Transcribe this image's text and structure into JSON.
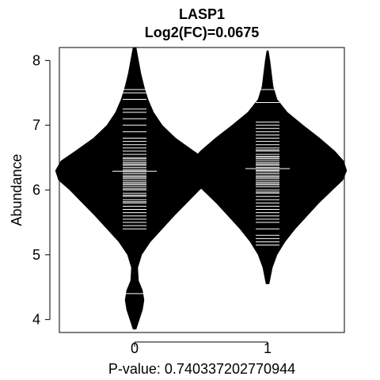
{
  "chart_data": {
    "type": "beanplot",
    "title": "LASP1",
    "subtitle": "Log2(FC)=0.0675",
    "ylabel": "Abundance",
    "xlabel": "P-value: 0.740337202770944",
    "categories": [
      "0",
      "1"
    ],
    "yticks": [
      4,
      5,
      6,
      7,
      8
    ],
    "ylim": [
      3.8,
      8.2
    ],
    "overall_mean": 6.31,
    "groups": [
      {
        "name": "0",
        "mean": 6.29,
        "min": 3.85,
        "max": 8.2,
        "density": [
          [
            3.85,
            0.02
          ],
          [
            4.0,
            0.06
          ],
          [
            4.15,
            0.1
          ],
          [
            4.3,
            0.12
          ],
          [
            4.45,
            0.1
          ],
          [
            4.6,
            0.05
          ],
          [
            4.8,
            0.04
          ],
          [
            5.0,
            0.09
          ],
          [
            5.2,
            0.2
          ],
          [
            5.4,
            0.35
          ],
          [
            5.6,
            0.5
          ],
          [
            5.8,
            0.66
          ],
          [
            6.0,
            0.82
          ],
          [
            6.15,
            0.96
          ],
          [
            6.3,
            1.0
          ],
          [
            6.45,
            0.93
          ],
          [
            6.6,
            0.75
          ],
          [
            6.8,
            0.52
          ],
          [
            7.0,
            0.35
          ],
          [
            7.2,
            0.24
          ],
          [
            7.4,
            0.17
          ],
          [
            7.6,
            0.12
          ],
          [
            7.8,
            0.08
          ],
          [
            8.0,
            0.05
          ],
          [
            8.2,
            0.02
          ]
        ],
        "lines": [
          4.4,
          5.4,
          5.45,
          5.5,
          5.55,
          5.6,
          5.65,
          5.7,
          5.75,
          5.8,
          5.82,
          5.85,
          5.9,
          5.92,
          5.95,
          6.0,
          6.02,
          6.05,
          6.08,
          6.1,
          6.12,
          6.15,
          6.18,
          6.2,
          6.22,
          6.25,
          6.28,
          6.3,
          6.32,
          6.35,
          6.38,
          6.4,
          6.42,
          6.45,
          6.48,
          6.5,
          6.55,
          6.6,
          6.65,
          6.7,
          6.75,
          6.8,
          6.9,
          7.0,
          7.1,
          7.2,
          7.25,
          7.4,
          7.5,
          7.55
        ]
      },
      {
        "name": "1",
        "mean": 6.33,
        "min": 4.55,
        "max": 8.15,
        "density": [
          [
            4.55,
            0.02
          ],
          [
            4.8,
            0.06
          ],
          [
            5.0,
            0.12
          ],
          [
            5.2,
            0.22
          ],
          [
            5.4,
            0.35
          ],
          [
            5.6,
            0.5
          ],
          [
            5.8,
            0.65
          ],
          [
            6.0,
            0.82
          ],
          [
            6.15,
            0.95
          ],
          [
            6.3,
            1.0
          ],
          [
            6.45,
            0.96
          ],
          [
            6.6,
            0.85
          ],
          [
            6.8,
            0.66
          ],
          [
            7.0,
            0.45
          ],
          [
            7.2,
            0.25
          ],
          [
            7.4,
            0.12
          ],
          [
            7.6,
            0.07
          ],
          [
            7.8,
            0.05
          ],
          [
            8.0,
            0.03
          ],
          [
            8.15,
            0.01
          ]
        ],
        "lines": [
          5.15,
          5.2,
          5.25,
          5.3,
          5.4,
          5.5,
          5.55,
          5.6,
          5.65,
          5.7,
          5.75,
          5.8,
          5.85,
          5.9,
          5.95,
          5.97,
          6.0,
          6.05,
          6.08,
          6.1,
          6.12,
          6.15,
          6.18,
          6.2,
          6.22,
          6.25,
          6.28,
          6.3,
          6.32,
          6.35,
          6.38,
          6.4,
          6.42,
          6.45,
          6.48,
          6.5,
          6.52,
          6.55,
          6.6,
          6.62,
          6.65,
          6.7,
          6.75,
          6.8,
          6.85,
          6.9,
          6.95,
          7.0,
          7.05,
          7.35,
          7.55
        ]
      }
    ],
    "colors": {
      "bean_fill": "#000000",
      "bean_lines": "#ffffff",
      "axis": "#000000",
      "background": "#ffffff"
    }
  }
}
